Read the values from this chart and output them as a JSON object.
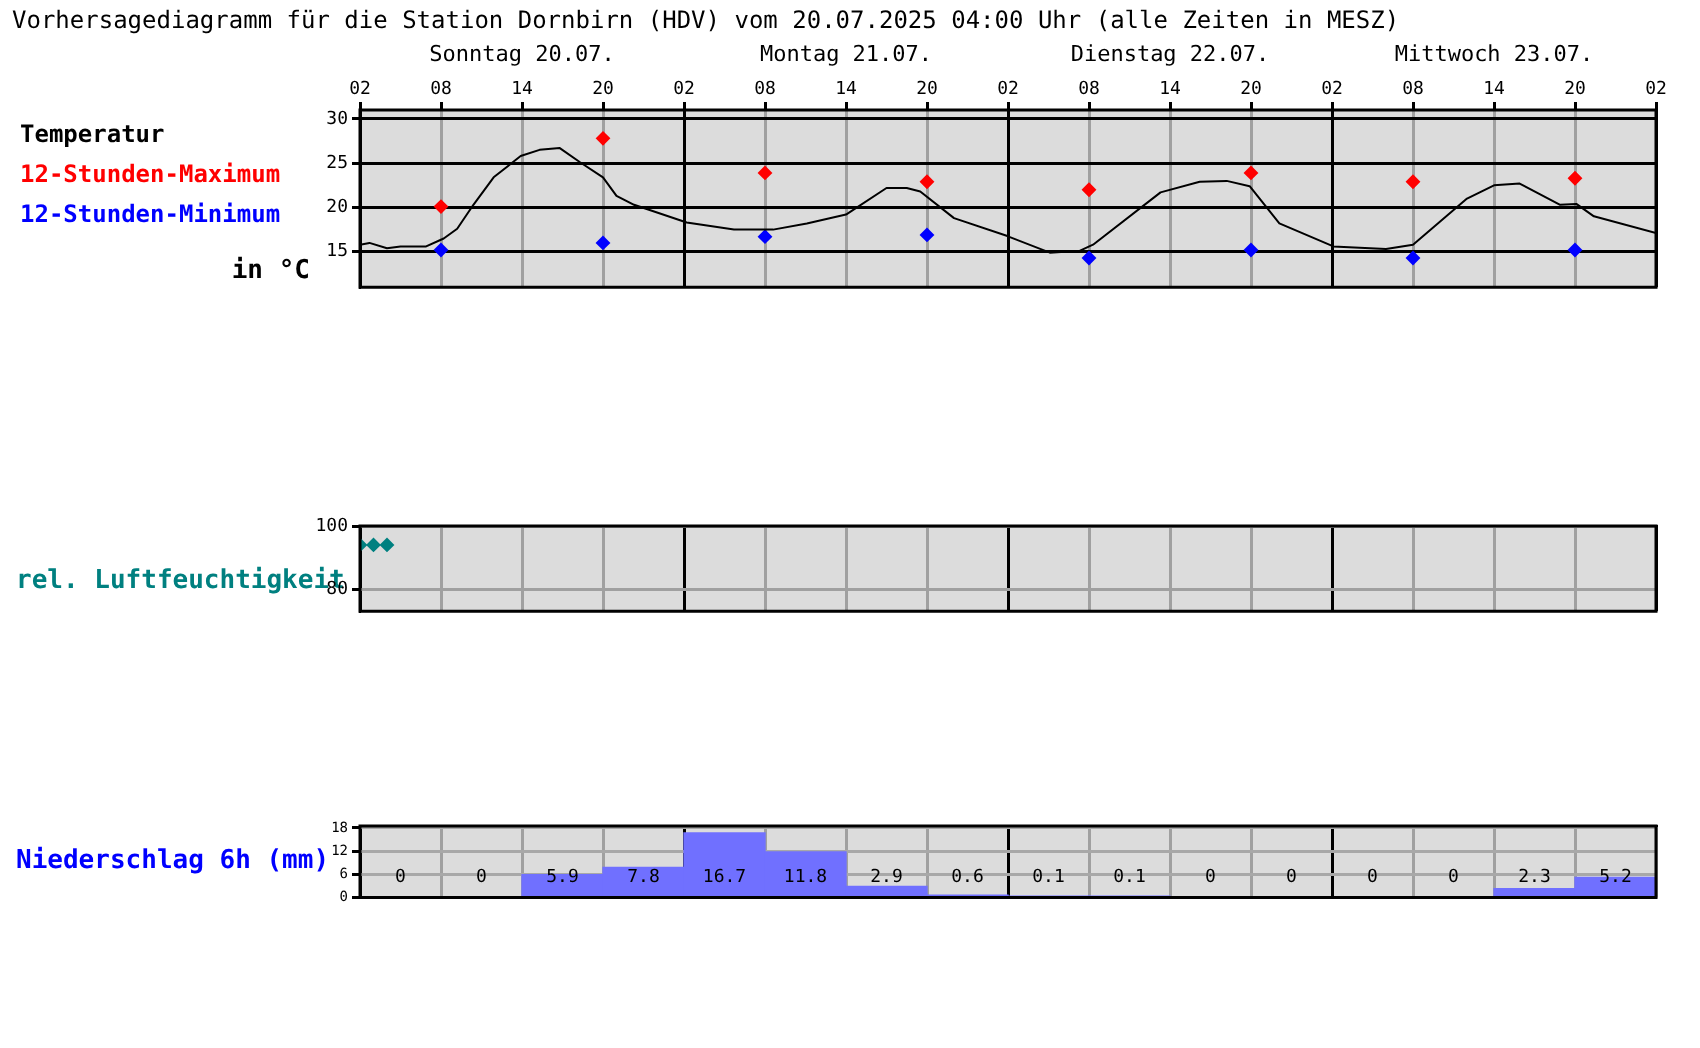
{
  "chart_data": [
    {
      "type": "line",
      "title": "Vorhersagediagramm für die Station Dornbirn (HDV) vom 20.07.2025 04:00 Uhr (alle Zeiten in MESZ)",
      "legend_title": "Temperatur",
      "ylabel": "in °C",
      "legend": "left",
      "marker": "diamond",
      "grid": true,
      "series": [
        {
          "color": "#000000",
          "marker": "none",
          "x": [
            "2025-07-20T02:00",
            "2025-07-20T02:42",
            "2025-07-20T04:00",
            "2025-07-20T05:00",
            "2025-07-20T06:54",
            "2025-07-20T08:12",
            "2025-07-20T09:12",
            "2025-07-20T10:24",
            "2025-07-20T11:54",
            "2025-07-20T13:54",
            "2025-07-20T15:18",
            "2025-07-20T16:48",
            "2025-07-20T18:18",
            "2025-07-20T20:00",
            "2025-07-20T21:00",
            "2025-07-20T22:18",
            "2025-07-21T02:12",
            "2025-07-21T05:42",
            "2025-07-21T08:36",
            "2025-07-21T11:06",
            "2025-07-21T14:00",
            "2025-07-21T17:00",
            "2025-07-21T18:30",
            "2025-07-21T19:30",
            "2025-07-21T22:00",
            "2025-07-22T01:54",
            "2025-07-22T05:06",
            "2025-07-22T07:18",
            "2025-07-22T08:18",
            "2025-07-22T13:18",
            "2025-07-22T16:12",
            "2025-07-22T18:12",
            "2025-07-22T19:54",
            "2025-07-22T22:06",
            "2025-07-23T02:06",
            "2025-07-23T06:00",
            "2025-07-23T08:00",
            "2025-07-23T12:00",
            "2025-07-23T14:00",
            "2025-07-23T15:54",
            "2025-07-23T18:54",
            "2025-07-23T20:06",
            "2025-07-23T21:24",
            "2025-07-24T02:00"
          ],
          "values": [
            15.8,
            16,
            15.4,
            15.6,
            15.6,
            16.5,
            17.6,
            20.3,
            23.4,
            25.8,
            26.5,
            26.7,
            25.1,
            23.4,
            21.3,
            20.3,
            18.3,
            17.5,
            17.5,
            18.2,
            19.2,
            22.2,
            22.2,
            21.8,
            18.8,
            16.8,
            14.9,
            15.1,
            15.8,
            21.7,
            22.9,
            23,
            22.4,
            18.2,
            15.6,
            15.3,
            15.8,
            21,
            22.5,
            22.7,
            20.3,
            20.4,
            19,
            17.1
          ]
        },
        {
          "name": "12-Stunden-Maximum",
          "type": "scatter",
          "color": "#ff0000",
          "x": [
            "2025-07-20T08:00",
            "2025-07-20T20:00",
            "2025-07-21T08:00",
            "2025-07-21T20:00",
            "2025-07-22T08:00",
            "2025-07-22T20:00",
            "2025-07-23T08:00",
            "2025-07-23T20:00"
          ],
          "values": [
            20.1,
            27.8,
            23.9,
            22.9,
            22,
            23.9,
            22.9,
            23.3
          ]
        },
        {
          "name": "12-Stunden-Minimum",
          "type": "scatter",
          "color": "#0000ff",
          "x": [
            "2025-07-20T08:00",
            "2025-07-20T20:00",
            "2025-07-21T08:00",
            "2025-07-21T20:00",
            "2025-07-22T08:00",
            "2025-07-22T20:00",
            "2025-07-23T08:00",
            "2025-07-23T20:00"
          ],
          "values": [
            15.2,
            16,
            16.7,
            16.9,
            14.3,
            15.2,
            14.3,
            15.2
          ]
        }
      ],
      "xlim": [
        "2025-07-20T02:00",
        "2025-07-24T02:00"
      ],
      "xticks": [
        {
          "value": "2025-07-20T02:00",
          "label": "02"
        },
        {
          "value": "2025-07-20T08:00",
          "label": "08"
        },
        {
          "value": "2025-07-20T14:00",
          "label": "14"
        },
        {
          "value": "2025-07-20T20:00",
          "label": "20"
        },
        {
          "value": "2025-07-21T02:00",
          "label": "02"
        },
        {
          "value": "2025-07-21T08:00",
          "label": "08"
        },
        {
          "value": "2025-07-21T14:00",
          "label": "14"
        },
        {
          "value": "2025-07-21T20:00",
          "label": "20"
        },
        {
          "value": "2025-07-22T02:00",
          "label": "02"
        },
        {
          "value": "2025-07-22T08:00",
          "label": "08"
        },
        {
          "value": "2025-07-22T14:00",
          "label": "14"
        },
        {
          "value": "2025-07-22T20:00",
          "label": "20"
        },
        {
          "value": "2025-07-23T02:00",
          "label": "02"
        },
        {
          "value": "2025-07-23T08:00",
          "label": "08"
        },
        {
          "value": "2025-07-23T14:00",
          "label": "14"
        },
        {
          "value": "2025-07-23T20:00",
          "label": "20"
        },
        {
          "value": "2025-07-24T02:00",
          "label": "02"
        }
      ],
      "x2lim": [
        "2025-07-20T02:00",
        "2025-07-24T02:00"
      ],
      "x2ticks": [
        {
          "value": "2025-07-20T14:00",
          "label": "Sonntag 20.07."
        },
        {
          "value": "2025-07-21T14:00",
          "label": "Montag 21.07."
        },
        {
          "value": "2025-07-22T14:00",
          "label": "Dienstag 22.07."
        },
        {
          "value": "2025-07-23T14:00",
          "label": "Mittwoch 23.07."
        }
      ],
      "ylim": [
        11,
        31
      ],
      "yticks": [
        15,
        20,
        25,
        30
      ]
    },
    {
      "type": "scatter",
      "ylabel": "rel. Luftfeuchtigkeit",
      "marker": "diamond",
      "grid": true,
      "tick_labels": "y",
      "series": [
        {
          "color": "#008080",
          "x": [
            "2025-07-20T02:00",
            "2025-07-20T03:00",
            "2025-07-20T04:00"
          ],
          "values": [
            94,
            94,
            94
          ]
        }
      ],
      "xlim": [
        "2025-07-20T02:00",
        "2025-07-24T02:00"
      ],
      "xticks": [
        {
          "value": "2025-07-20T02:00",
          "label": null
        },
        {
          "value": "2025-07-20T08:00",
          "label": null
        },
        {
          "value": "2025-07-20T14:00",
          "label": null
        },
        {
          "value": "2025-07-20T20:00",
          "label": null
        },
        {
          "value": "2025-07-21T02:00",
          "label": null
        },
        {
          "value": "2025-07-21T08:00",
          "label": null
        },
        {
          "value": "2025-07-21T14:00",
          "label": null
        },
        {
          "value": "2025-07-21T20:00",
          "label": null
        },
        {
          "value": "2025-07-22T02:00",
          "label": null
        },
        {
          "value": "2025-07-22T08:00",
          "label": null
        },
        {
          "value": "2025-07-22T14:00",
          "label": null
        },
        {
          "value": "2025-07-22T20:00",
          "label": null
        },
        {
          "value": "2025-07-23T02:00",
          "label": null
        },
        {
          "value": "2025-07-23T08:00",
          "label": null
        },
        {
          "value": "2025-07-23T14:00",
          "label": null
        },
        {
          "value": "2025-07-23T20:00",
          "label": null
        },
        {
          "value": "2025-07-24T02:00",
          "label": null
        }
      ],
      "ylim": [
        73,
        100
      ],
      "yticks": [
        80,
        100
      ]
    },
    {
      "type": "bar",
      "ylabel": "Niederschlag 6h (mm)",
      "grid": true,
      "tick_labels": "y",
      "categories": [
        null,
        null,
        null,
        null,
        null,
        null,
        null,
        null,
        null,
        null,
        null,
        null,
        null,
        null,
        null,
        null
      ],
      "series": [
        {
          "color": "#7070ff",
          "values": [
            0,
            0,
            5.9,
            7.8,
            16.7,
            11.8,
            2.9,
            0.6,
            0.1,
            0.1,
            0,
            0,
            0,
            0,
            2.3,
            5.2
          ],
          "value_labels": [
            "0",
            "0",
            "5.9",
            "7.8",
            "16.7",
            "11.8",
            "2.9",
            "0.6",
            "0.1",
            "0.1",
            "0",
            "0",
            "0",
            "0",
            "2.3",
            "5.2"
          ]
        }
      ],
      "ylim": [
        0,
        18.5
      ],
      "yticks": [
        0,
        6,
        12,
        18
      ]
    }
  ]
}
